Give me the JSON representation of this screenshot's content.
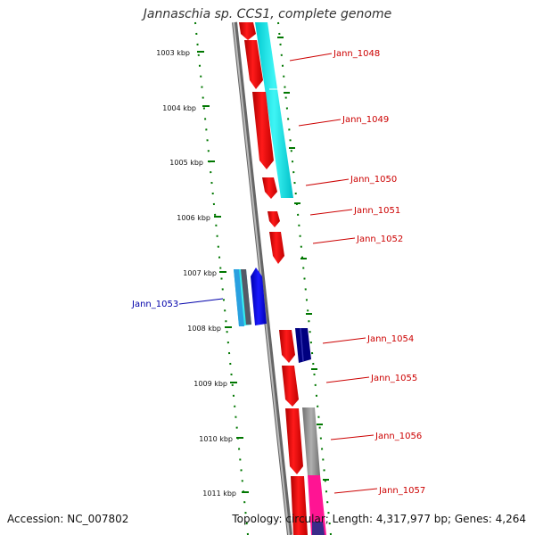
{
  "title": "Jannaschia sp. CCS1, complete genome",
  "accession": "Accession: NC_007802",
  "topology": "Topology: circular; Length: 4,317,977 bp; Genes: 4,264",
  "colors": {
    "backbone": "#888888",
    "ruler": "#007700",
    "forward_gene": "#ee0000",
    "reverse_gene_label": "#0000aa",
    "cyan_feature": "#00e5e5",
    "blue_gene": "#0000ee",
    "navy_gene": "#000080",
    "gray_feature": "#bbbbbb",
    "magenta_feature": "#ff1493"
  },
  "ruler_ticks": [
    "1003 kbp",
    "1004 kbp",
    "1005 kbp",
    "1006 kbp",
    "1007 kbp",
    "1008 kbp",
    "1009 kbp",
    "1010 kbp",
    "1011 kbp"
  ],
  "gene_labels": [
    "Jann_1048",
    "Jann_1049",
    "Jann_1050",
    "Jann_1051",
    "Jann_1052",
    "Jann_1053",
    "Jann_1054",
    "Jann_1055",
    "Jann_1056",
    "Jann_1057"
  ]
}
